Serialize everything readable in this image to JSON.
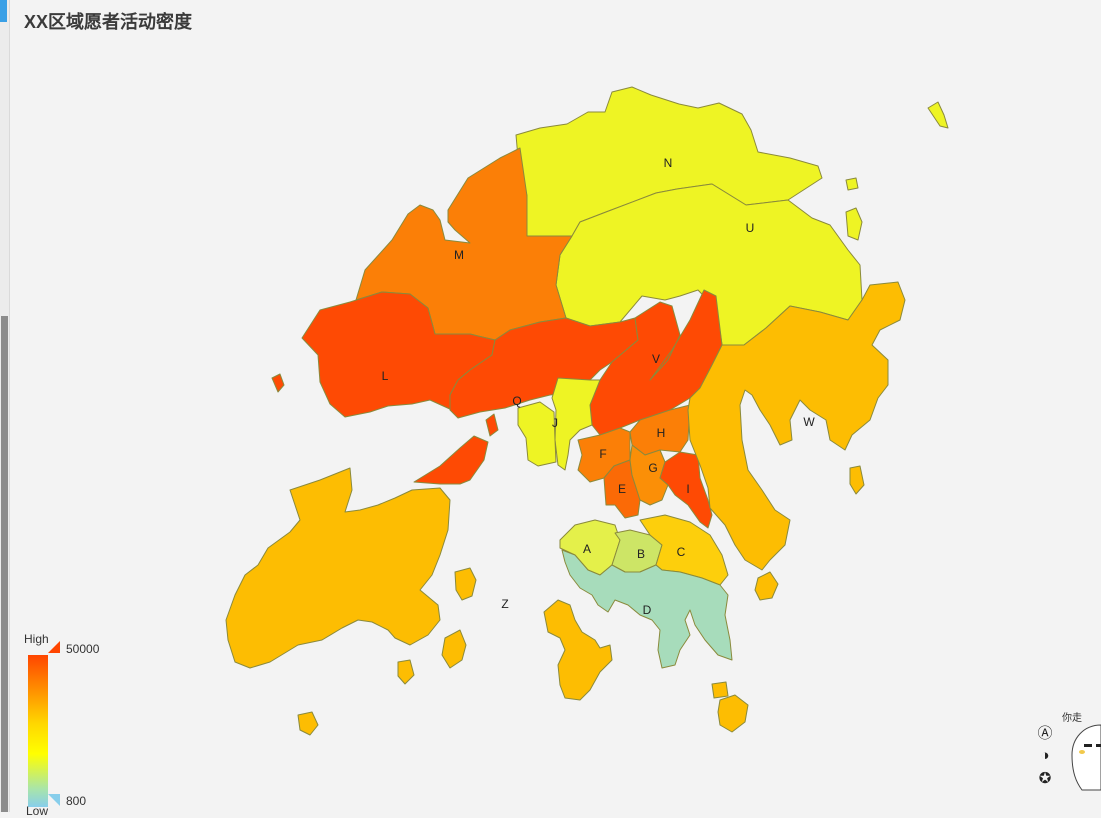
{
  "title": "XX区域愿者活动密度",
  "legend": {
    "high_label": "High",
    "low_label": "Low",
    "max": "50000",
    "min": "800"
  },
  "regions": [
    {
      "id": "N",
      "color": "#eef424"
    },
    {
      "id": "U",
      "color": "#eef424"
    },
    {
      "id": "M",
      "color": "#fb7f07"
    },
    {
      "id": "L",
      "color": "#fe4a04"
    },
    {
      "id": "V",
      "color": "#fe4a04"
    },
    {
      "id": "Q",
      "color": "#fe4a04"
    },
    {
      "id": "J",
      "color": "#eef424"
    },
    {
      "id": "F",
      "color": "#fb7f07"
    },
    {
      "id": "H",
      "color": "#fb7f07"
    },
    {
      "id": "G",
      "color": "#fb8f07"
    },
    {
      "id": "E",
      "color": "#fb6a06"
    },
    {
      "id": "I",
      "color": "#fe4a04"
    },
    {
      "id": "W",
      "color": "#fdbd02"
    },
    {
      "id": "A",
      "color": "#e4f04a"
    },
    {
      "id": "B",
      "color": "#cde566"
    },
    {
      "id": "C",
      "color": "#fdcf0c"
    },
    {
      "id": "D",
      "color": "#a7dcbb"
    },
    {
      "id": "Z",
      "color": "#fdbd02"
    }
  ],
  "mascot_text": "你走"
}
